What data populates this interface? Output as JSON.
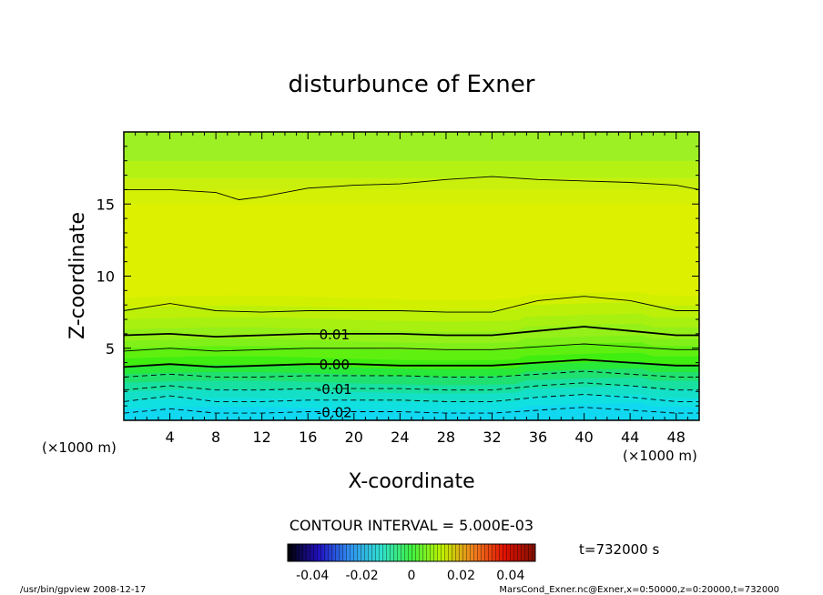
{
  "chart_data": {
    "type": "heatmap",
    "title": "disturbunce of Exner",
    "xlabel": "X-coordinate",
    "ylabel": "Z-coordinate",
    "x_unit": "(×1000 m)",
    "z_unit": "(×1000 m)",
    "xlim": [
      0,
      50
    ],
    "ylim": [
      0,
      20
    ],
    "x_ticks": [
      "4",
      "8",
      "12",
      "16",
      "20",
      "24",
      "28",
      "32",
      "36",
      "40",
      "44",
      "48"
    ],
    "y_ticks": [
      "5",
      "10",
      "15"
    ],
    "contour_interval_text": "CONTOUR INTERVAL = 5.000E-03",
    "contour_labels": [
      {
        "text": "0.01",
        "value": 0.01
      },
      {
        "text": "0.00",
        "value": 0.0
      },
      {
        "text": "-0.01",
        "value": -0.01
      },
      {
        "text": "-0.02",
        "value": -0.02
      }
    ],
    "contours": [
      {
        "value": 0.015,
        "x": [
          0,
          4,
          8,
          10,
          12,
          16,
          20,
          24,
          28,
          32,
          36,
          40,
          44,
          48,
          50
        ],
        "z": [
          16.0,
          16.0,
          15.8,
          15.3,
          15.5,
          16.1,
          16.3,
          16.4,
          16.7,
          16.9,
          16.7,
          16.6,
          16.5,
          16.3,
          16.0
        ]
      },
      {
        "value": 0.005,
        "x": [
          0,
          4,
          8,
          12,
          16,
          20,
          24,
          28,
          32,
          36,
          40,
          44,
          48,
          50
        ],
        "z": [
          7.6,
          8.1,
          7.6,
          7.5,
          7.6,
          7.6,
          7.6,
          7.5,
          7.5,
          8.3,
          8.6,
          8.3,
          7.6,
          7.6
        ]
      },
      {
        "value": 0.01,
        "x": [
          0,
          4,
          8,
          12,
          16,
          20,
          24,
          28,
          32,
          36,
          40,
          44,
          48,
          50
        ],
        "z": [
          5.9,
          6.0,
          5.8,
          5.9,
          6.0,
          6.0,
          6.0,
          5.9,
          5.9,
          6.2,
          6.5,
          6.2,
          5.9,
          5.9
        ]
      },
      {
        "value": 0.005,
        "x": [
          0,
          4,
          8,
          12,
          16,
          20,
          24,
          28,
          32,
          36,
          40,
          44,
          48,
          50
        ],
        "z": [
          4.8,
          5.0,
          4.8,
          4.9,
          5.0,
          5.0,
          5.0,
          4.9,
          4.9,
          5.1,
          5.3,
          5.1,
          4.9,
          4.9
        ]
      },
      {
        "value": 0.0,
        "x": [
          0,
          4,
          8,
          12,
          16,
          20,
          24,
          28,
          32,
          36,
          40,
          44,
          48,
          50
        ],
        "z": [
          3.7,
          3.9,
          3.7,
          3.8,
          3.9,
          3.9,
          3.8,
          3.8,
          3.8,
          4.0,
          4.2,
          4.0,
          3.8,
          3.8
        ]
      },
      {
        "value": -0.005,
        "x": [
          0,
          4,
          8,
          12,
          16,
          20,
          24,
          28,
          32,
          36,
          40,
          44,
          48,
          50
        ],
        "z": [
          3.0,
          3.2,
          3.0,
          3.0,
          3.1,
          3.1,
          3.1,
          3.0,
          3.0,
          3.2,
          3.4,
          3.2,
          3.0,
          3.0
        ]
      },
      {
        "value": -0.01,
        "x": [
          0,
          4,
          8,
          12,
          16,
          20,
          24,
          28,
          32,
          36,
          40,
          44,
          48,
          50
        ],
        "z": [
          2.1,
          2.4,
          2.1,
          2.1,
          2.2,
          2.2,
          2.2,
          2.1,
          2.1,
          2.4,
          2.6,
          2.4,
          2.1,
          2.1
        ]
      },
      {
        "value": -0.015,
        "x": [
          0,
          4,
          8,
          12,
          16,
          20,
          24,
          28,
          32,
          36,
          40,
          44,
          48,
          50
        ],
        "z": [
          1.3,
          1.7,
          1.3,
          1.3,
          1.4,
          1.4,
          1.4,
          1.3,
          1.3,
          1.6,
          1.8,
          1.6,
          1.3,
          1.3
        ]
      },
      {
        "value": -0.02,
        "x": [
          0,
          4,
          8,
          12,
          16,
          20,
          24,
          28,
          32,
          36,
          40,
          44,
          48,
          50
        ],
        "z": [
          0.5,
          0.8,
          0.5,
          0.5,
          0.6,
          0.6,
          0.6,
          0.5,
          0.5,
          0.7,
          0.9,
          0.7,
          0.5,
          0.5
        ]
      }
    ],
    "fill_bands": [
      {
        "z_top": 20.0,
        "color": "#9cf024"
      },
      {
        "z_top": 18.0,
        "color": "#b4f214"
      },
      {
        "z_top": 16.8,
        "color": "#c8f00c"
      },
      {
        "z_top": 16.0,
        "color": "#d4f004"
      },
      {
        "z_top": 15.0,
        "color": "#dcf000"
      },
      {
        "z_top": 8.5,
        "color": "#d0f000"
      },
      {
        "z_top": 7.8,
        "color": "#bcf008"
      },
      {
        "z_top": 7.0,
        "color": "#a8f010"
      },
      {
        "z_top": 6.3,
        "color": "#94f018"
      },
      {
        "z_top": 5.5,
        "color": "#80f018"
      },
      {
        "z_top": 5.0,
        "color": "#60f010"
      },
      {
        "z_top": 4.3,
        "color": "#40ee10"
      },
      {
        "z_top": 3.7,
        "color": "#28e838"
      },
      {
        "z_top": 3.2,
        "color": "#20e070"
      },
      {
        "z_top": 2.6,
        "color": "#18e0a0"
      },
      {
        "z_top": 2.0,
        "color": "#14e0c8"
      },
      {
        "z_top": 1.4,
        "color": "#10e0e0"
      },
      {
        "z_top": 0.8,
        "color": "#10d8f0"
      }
    ],
    "colorbar": {
      "range": [
        -0.05,
        0.05
      ],
      "tick_labels": [
        "-0.04",
        "-0.02",
        "0",
        "0.02",
        "0.04"
      ],
      "tick_values": [
        -0.04,
        -0.02,
        0,
        0.02,
        0.04
      ],
      "stops": [
        "#000000",
        "#2010c0",
        "#3090f0",
        "#30e0d0",
        "#40f040",
        "#c0f000",
        "#f08020",
        "#e01000",
        "#801000"
      ]
    }
  },
  "time_label": "t=732000 s",
  "footer_left": "/usr/bin/gpview   2008-12-17",
  "footer_right": "MarsCond_Exner.nc@Exner,x=0:50000,z=0:20000,t=732000"
}
